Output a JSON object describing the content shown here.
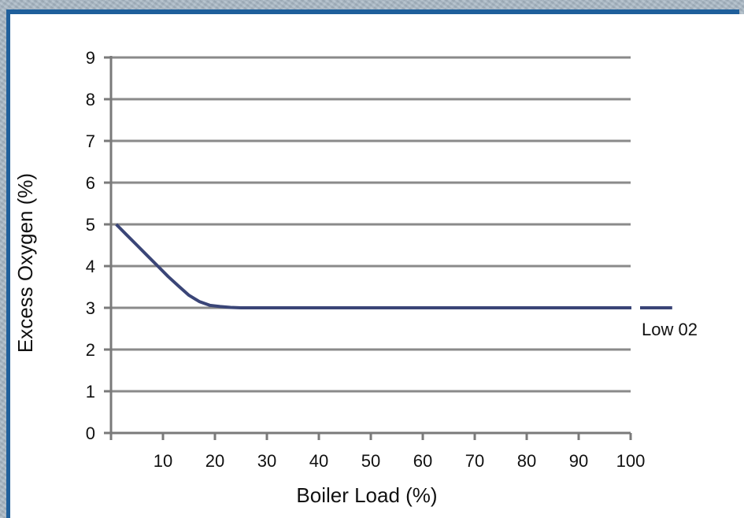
{
  "chart_data": {
    "type": "line",
    "xlabel": "Boiler Load (%)",
    "ylabel": "Excess Oxygen (%)",
    "xlim": [
      0,
      100
    ],
    "ylim": [
      0,
      9
    ],
    "x_ticks": [
      10,
      20,
      30,
      40,
      50,
      60,
      70,
      80,
      90,
      100
    ],
    "y_ticks": [
      0,
      1,
      2,
      3,
      4,
      5,
      6,
      7,
      8,
      9
    ],
    "grid": "horizontal",
    "series": [
      {
        "name": "Low 02",
        "color": "#3a4577",
        "x": [
          1,
          3,
          5,
          7,
          9,
          11,
          13,
          15,
          17,
          19,
          21,
          23,
          25,
          30,
          40,
          50,
          60,
          70,
          80,
          90,
          100,
          108
        ],
        "y": [
          5.0,
          4.75,
          4.5,
          4.25,
          4.0,
          3.75,
          3.52,
          3.3,
          3.15,
          3.06,
          3.03,
          3.01,
          3.0,
          3.0,
          3.0,
          3.0,
          3.0,
          3.0,
          3.0,
          3.0,
          3.0,
          3.0
        ]
      }
    ]
  }
}
